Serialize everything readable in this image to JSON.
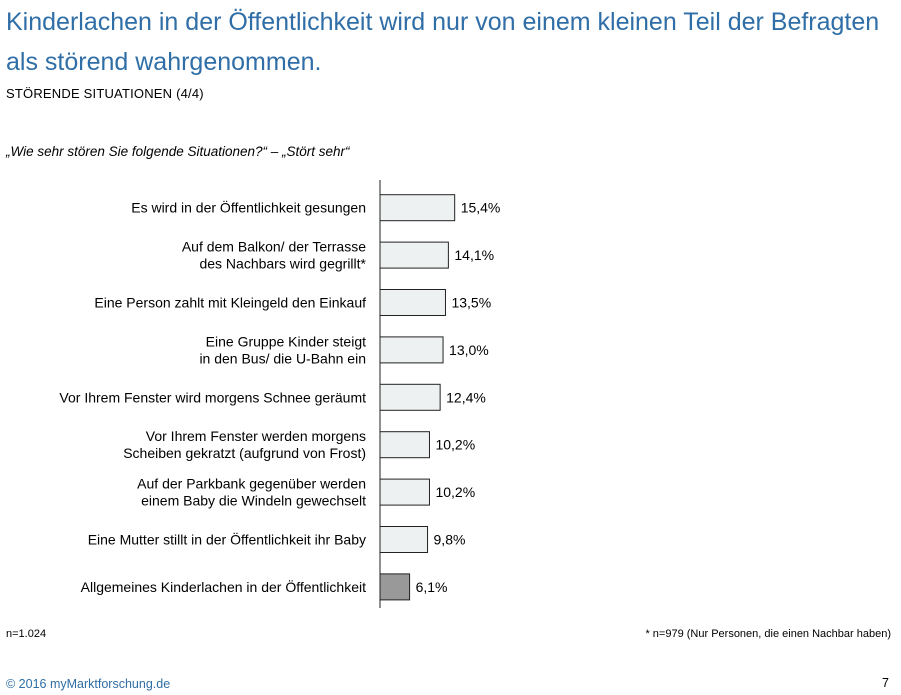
{
  "header": {
    "title": "Kinderlachen in der Öffentlichkeit wird nur von einem kleinen Teil der Befragten als störend wahrgenommen.",
    "subtitle": "STÖRENDE SITUATIONEN (4/4)"
  },
  "question": "„Wie sehr stören Sie folgende Situationen?“ – „Stört sehr“",
  "chart_data": {
    "type": "bar",
    "orientation": "horizontal",
    "categories": [
      [
        "Es wird in der Öffentlichkeit gesungen"
      ],
      [
        "Auf dem Balkon/ der Terrasse",
        "des Nachbars wird gegrillt*"
      ],
      [
        "Eine Person zahlt mit Kleingeld den Einkauf"
      ],
      [
        "Eine Gruppe Kinder steigt",
        "in den Bus/ die U-Bahn ein"
      ],
      [
        "Vor Ihrem Fenster wird morgens Schnee geräumt"
      ],
      [
        "Vor Ihrem Fenster werden morgens",
        "Scheiben gekratzt (aufgrund von Frost)"
      ],
      [
        "Auf der Parkbank gegenüber werden",
        "einem Baby die Windeln gewechselt"
      ],
      [
        "Eine Mutter stillt in der Öffentlichkeit ihr Baby"
      ],
      [
        "Allgemeines Kinderlachen in der Öffentlichkeit"
      ]
    ],
    "values": [
      15.4,
      14.1,
      13.5,
      13.0,
      12.4,
      10.2,
      10.2,
      9.8,
      6.1
    ],
    "value_labels": [
      "15,4%",
      "14,1%",
      "13,5%",
      "13,0%",
      "12,4%",
      "10,2%",
      "10,2%",
      "9,8%",
      "6,1%"
    ],
    "highlight_index": 8,
    "colors": {
      "bar_fill": "#eef1f1",
      "bar_highlight": "#999999",
      "bar_stroke": "#222222"
    },
    "title": "",
    "xlabel": "",
    "ylabel": "",
    "grid": false
  },
  "footer": {
    "n": "n=1.024",
    "note": "* n=979 (Nur Personen, die einen Nachbar haben)",
    "copyright": "© 2016 myMarktforschung.de",
    "page": "7"
  }
}
